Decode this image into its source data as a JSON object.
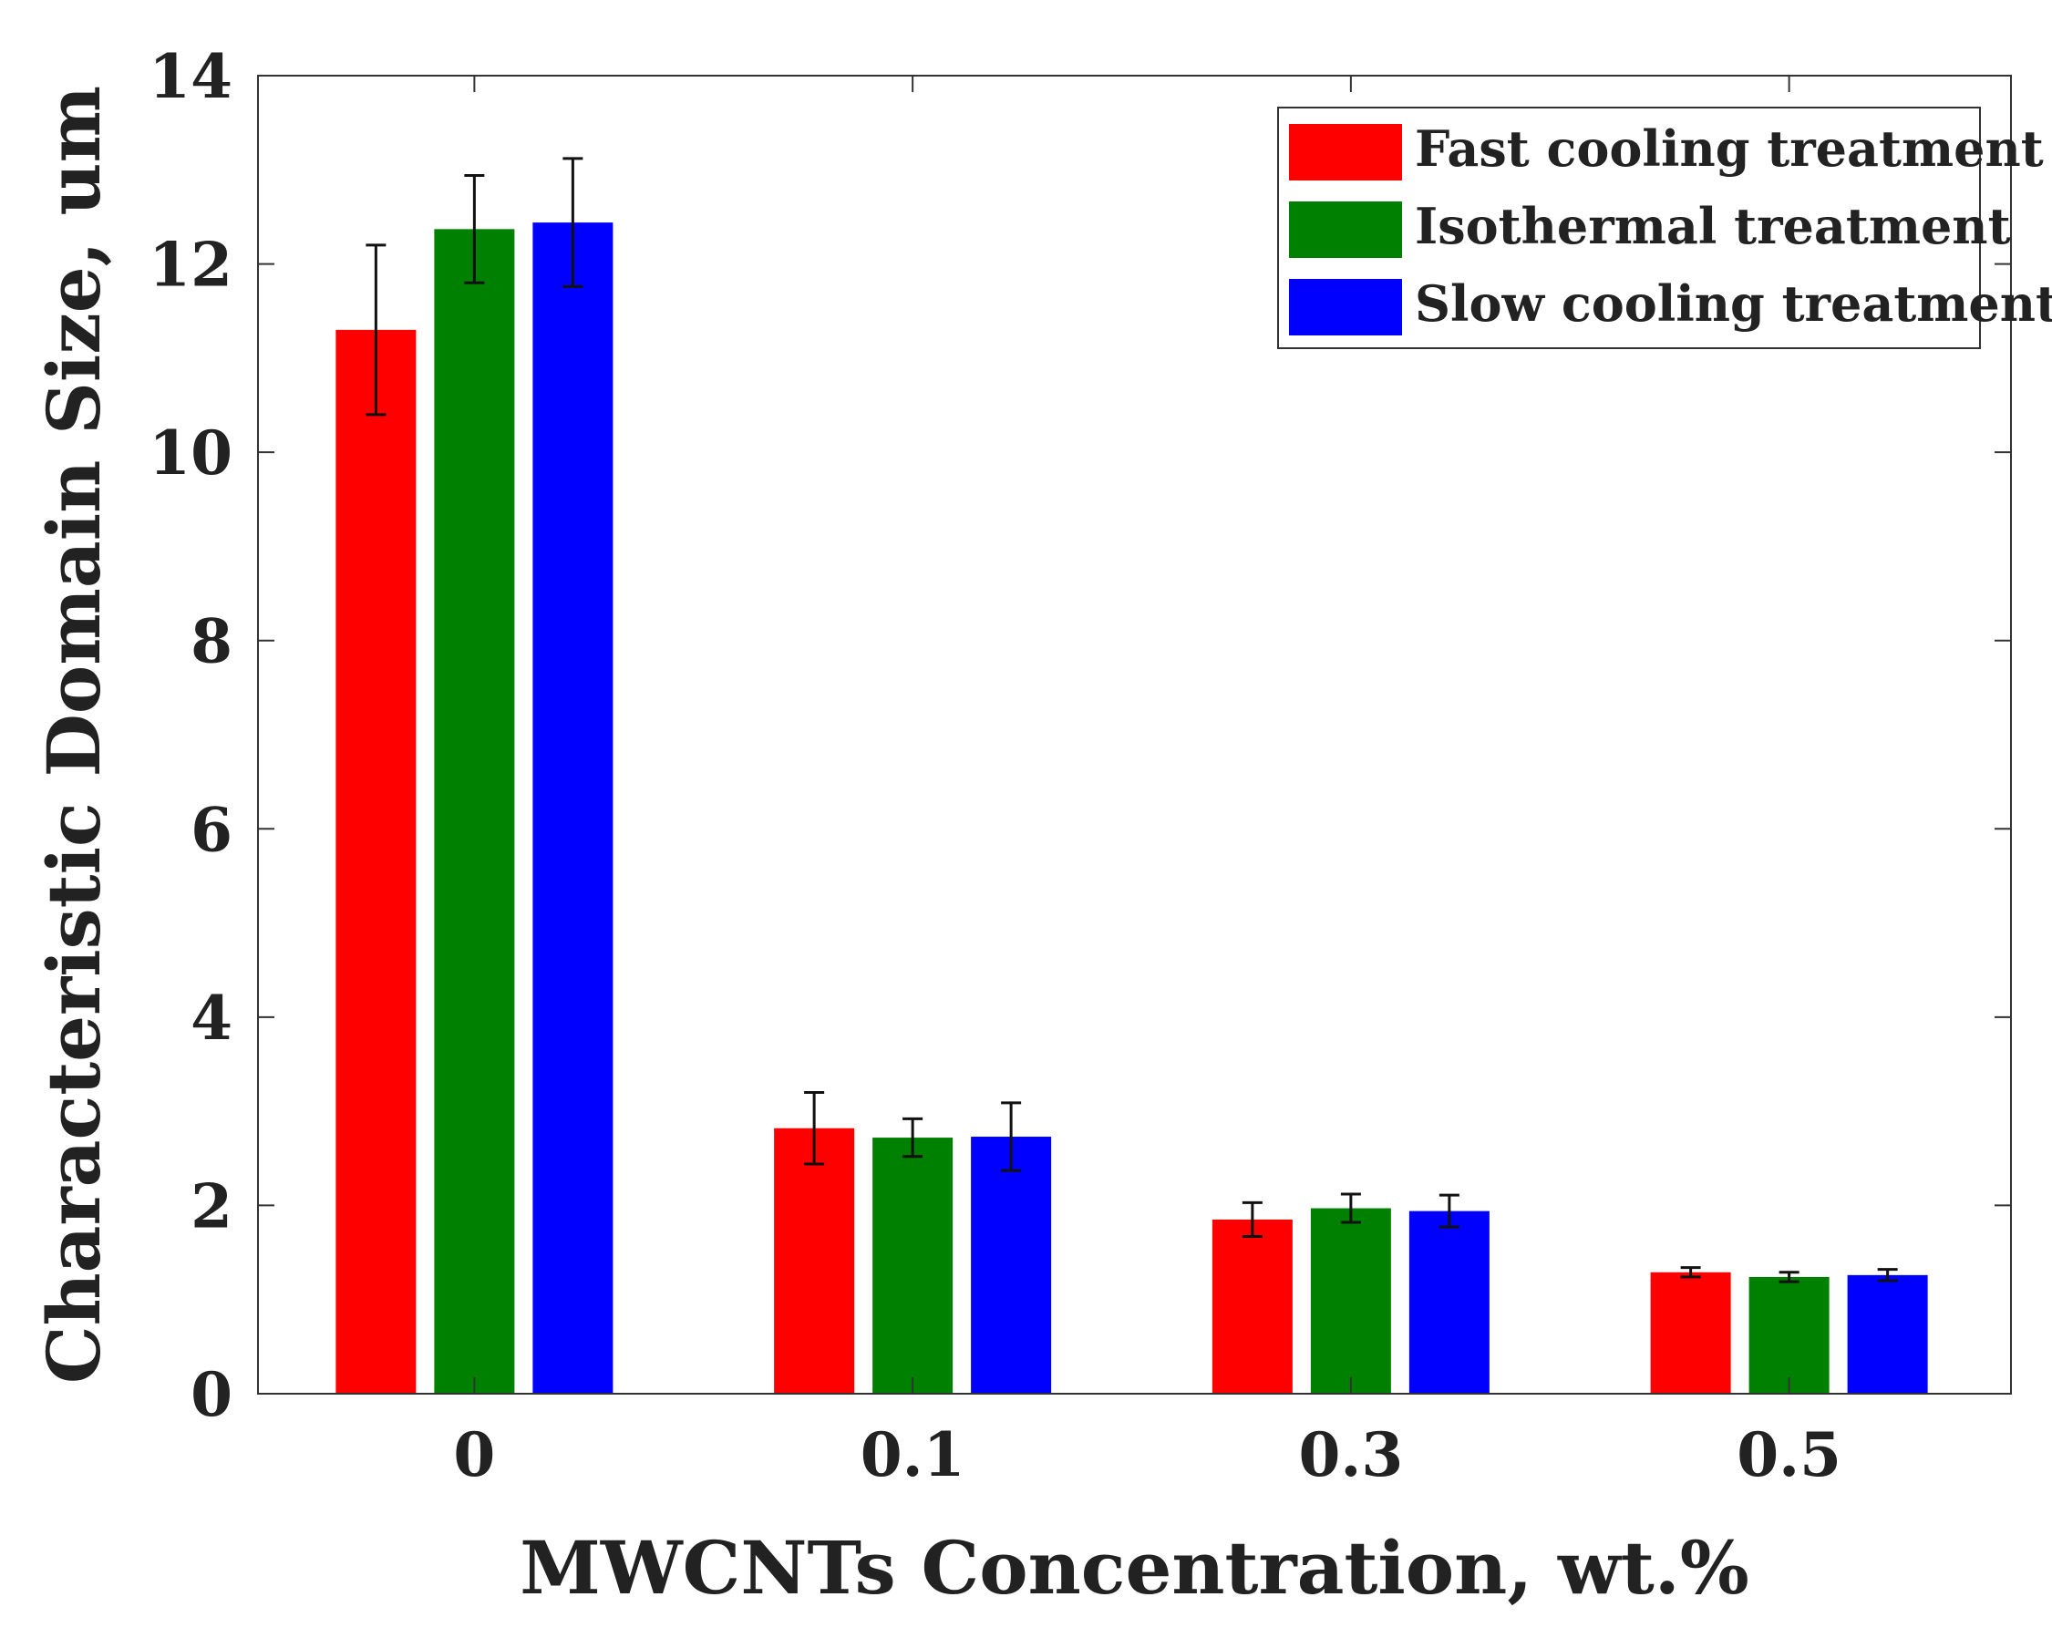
{
  "chart_data": {
    "type": "bar",
    "xlabel": "MWCNTs Concentration, wt.%",
    "ylabel": "Characteristic Domain Size, um",
    "categories": [
      "0",
      "0.1",
      "0.3",
      "0.5"
    ],
    "ylim": [
      0,
      14
    ],
    "yticks": [
      0,
      2,
      4,
      6,
      8,
      10,
      12,
      14
    ],
    "ytick_labels": [
      "0",
      "2",
      "4",
      "6",
      "8",
      "10",
      "12",
      "14"
    ],
    "grid": false,
    "legend_position": "top-right",
    "series": [
      {
        "name": "Fast cooling treatment",
        "color": "#ff0000",
        "values": [
          11.3,
          2.82,
          1.85,
          1.29
        ],
        "errors": [
          0.9,
          0.38,
          0.18,
          0.05
        ]
      },
      {
        "name": "Isothermal treatment",
        "color": "#008000",
        "values": [
          12.37,
          2.72,
          1.97,
          1.24
        ],
        "errors": [
          0.57,
          0.2,
          0.15,
          0.05
        ]
      },
      {
        "name": "Slow cooling treatment",
        "color": "#0000ff",
        "values": [
          12.44,
          2.73,
          1.94,
          1.26
        ],
        "errors": [
          0.68,
          0.36,
          0.17,
          0.06
        ]
      }
    ]
  }
}
